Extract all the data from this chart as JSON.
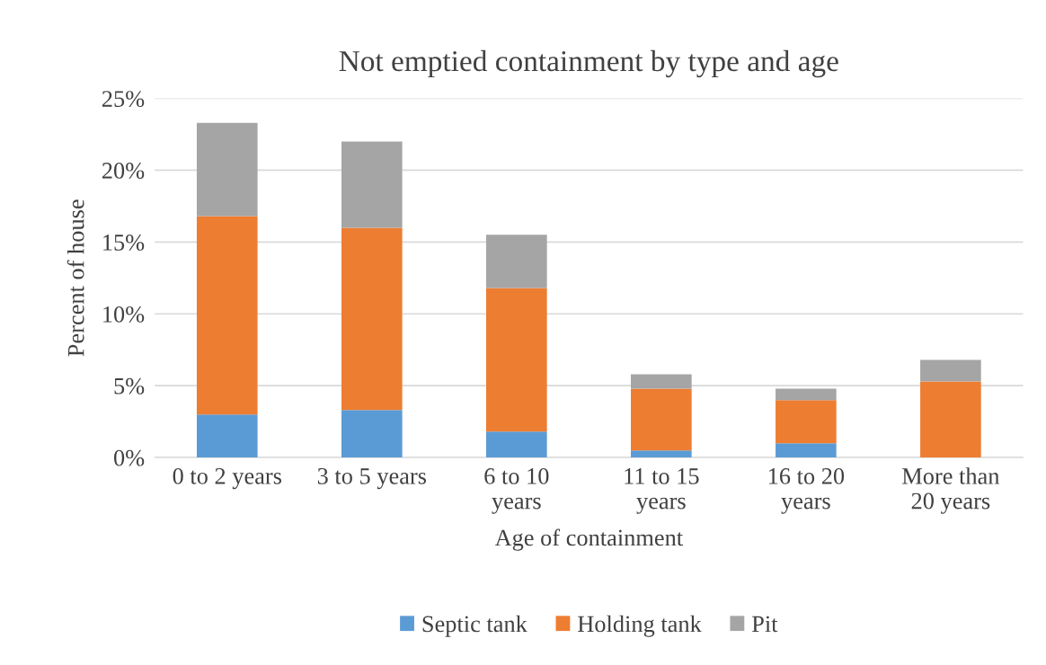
{
  "chart_data": {
    "type": "bar",
    "title": "Not emptied containment by type and age",
    "xlabel": "Age of containment",
    "ylabel": "Percent of house",
    "categories": [
      "0 to 2 years",
      "3 to 5 years",
      "6 to 10\nyears",
      "11 to 15\nyears",
      "16 to 20\nyears",
      "More than\n20 years"
    ],
    "stacked": true,
    "series": [
      {
        "name": "Septic tank",
        "color": "#5b9bd5",
        "values": [
          3.0,
          3.3,
          1.8,
          0.5,
          1.0,
          0.0
        ]
      },
      {
        "name": "Holding tank",
        "color": "#ed7d31",
        "values": [
          13.8,
          12.7,
          10.0,
          4.3,
          3.0,
          5.3
        ]
      },
      {
        "name": "Pit",
        "color": "#a5a5a5",
        "values": [
          6.5,
          6.0,
          3.7,
          1.0,
          0.8,
          1.5
        ]
      }
    ],
    "ylim": [
      0,
      25
    ],
    "yticks": [
      {
        "value": 0,
        "label": "0%"
      },
      {
        "value": 5,
        "label": "5%"
      },
      {
        "value": 10,
        "label": "10%"
      },
      {
        "value": 15,
        "label": "15%"
      },
      {
        "value": 20,
        "label": "20%"
      },
      {
        "value": 25,
        "label": "25%"
      }
    ],
    "grid": "y",
    "legend": "bottom"
  }
}
